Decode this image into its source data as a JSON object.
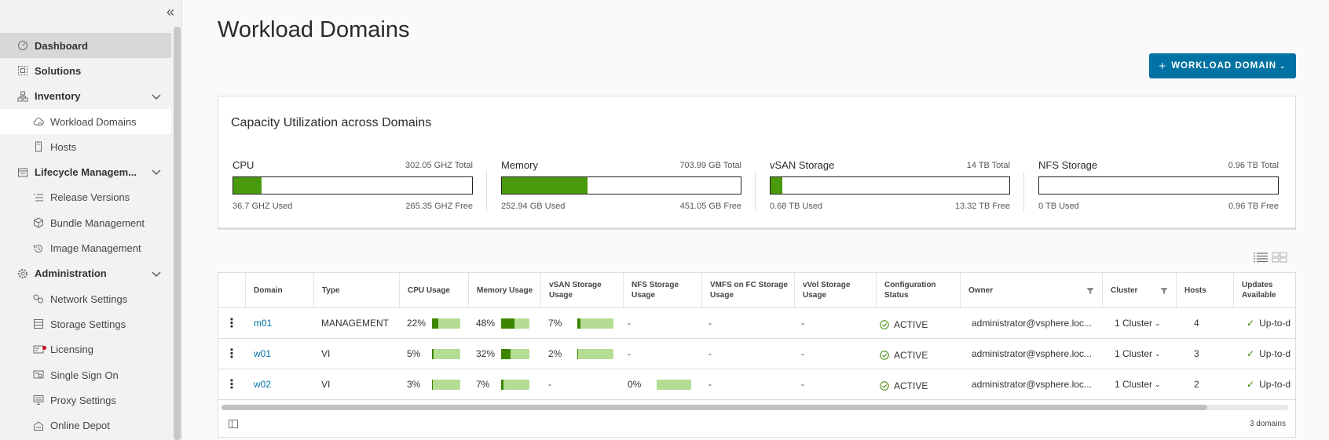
{
  "sidebar": {
    "items": [
      {
        "label": "Dashboard",
        "icon": "dashboard-icon"
      },
      {
        "label": "Solutions",
        "icon": "solutions-icon"
      },
      {
        "label": "Inventory",
        "icon": "inventory-icon"
      },
      {
        "label": "Workload Domains",
        "icon": "cloud-icon"
      },
      {
        "label": "Hosts",
        "icon": "host-icon"
      },
      {
        "label": "Lifecycle Managem...",
        "icon": "lifecycle-icon"
      },
      {
        "label": "Release Versions",
        "icon": "list-icon"
      },
      {
        "label": "Bundle Management",
        "icon": "bundle-icon"
      },
      {
        "label": "Image Management",
        "icon": "history-icon"
      },
      {
        "label": "Administration",
        "icon": "gear-icon"
      },
      {
        "label": "Network Settings",
        "icon": "network-icon"
      },
      {
        "label": "Storage Settings",
        "icon": "storage-icon"
      },
      {
        "label": "Licensing",
        "icon": "license-icon"
      },
      {
        "label": "Single Sign On",
        "icon": "sso-icon"
      },
      {
        "label": "Proxy Settings",
        "icon": "proxy-icon"
      },
      {
        "label": "Online Depot",
        "icon": "depot-icon"
      }
    ]
  },
  "page": {
    "title": "Workload Domains",
    "add_button": "WORKLOAD DOMAIN"
  },
  "capacity": {
    "title": "Capacity Utilization across Domains",
    "resources": [
      {
        "name": "CPU",
        "total": "302.05 GHZ Total",
        "used": "36.7 GHZ Used",
        "free": "265.35 GHZ Free",
        "used_fraction": 0.12
      },
      {
        "name": "Memory",
        "total": "703.99 GB Total",
        "used": "252.94 GB Used",
        "free": "451.05 GB Free",
        "used_fraction": 0.36
      },
      {
        "name": "vSAN Storage",
        "total": "14 TB Total",
        "used": "0.68 TB Used",
        "free": "13.32 TB Free",
        "used_fraction": 0.05
      },
      {
        "name": "NFS Storage",
        "total": "0.96 TB Total",
        "used": "0 TB Used",
        "free": "0.96 TB Free",
        "used_fraction": 0
      }
    ]
  },
  "grid": {
    "columns": [
      "Domain",
      "Type",
      "CPU Usage",
      "Memory Usage",
      "vSAN Storage Usage",
      "NFS Storage Usage",
      "VMFS on FC Storage Usage",
      "vVol Storage Usage",
      "Configuration Status",
      "Owner",
      "Cluster",
      "Hosts",
      "Updates Available"
    ],
    "rows": [
      {
        "domain": "m01",
        "type": "MANAGEMENT",
        "cpu": "22%",
        "cpu_fraction": 0.22,
        "memory": "48%",
        "memory_fraction": 0.48,
        "vsan": "7%",
        "vsan_fraction": 0.07,
        "nfs": "-",
        "vmfs": "-",
        "vvol": "-",
        "status": "ACTIVE",
        "owner": "administrator@vsphere.loc...",
        "cluster": "1 Cluster",
        "hosts": "4",
        "updates": "Up-to-d"
      },
      {
        "domain": "w01",
        "type": "VI",
        "cpu": "5%",
        "cpu_fraction": 0.05,
        "memory": "32%",
        "memory_fraction": 0.32,
        "vsan": "2%",
        "vsan_fraction": 0.02,
        "nfs": "-",
        "vmfs": "-",
        "vvol": "-",
        "status": "ACTIVE",
        "owner": "administrator@vsphere.loc...",
        "cluster": "1 Cluster",
        "hosts": "3",
        "updates": "Up-to-d"
      },
      {
        "domain": "w02",
        "type": "VI",
        "cpu": "3%",
        "cpu_fraction": 0.03,
        "memory": "7%",
        "memory_fraction": 0.07,
        "vsan": "-",
        "nfs": "0%",
        "nfs_fraction": 0.0,
        "vmfs": "-",
        "vvol": "-",
        "status": "ACTIVE",
        "owner": "administrator@vsphere.loc...",
        "cluster": "1 Cluster",
        "hosts": "2",
        "updates": "Up-to-d"
      }
    ],
    "footer": "3 domains"
  },
  "colors": {
    "accent": "#0072a3",
    "usage_fill": "#4a9a0d",
    "mini_bar_bg": "#b4dd93",
    "status_green": "#3c8500"
  }
}
